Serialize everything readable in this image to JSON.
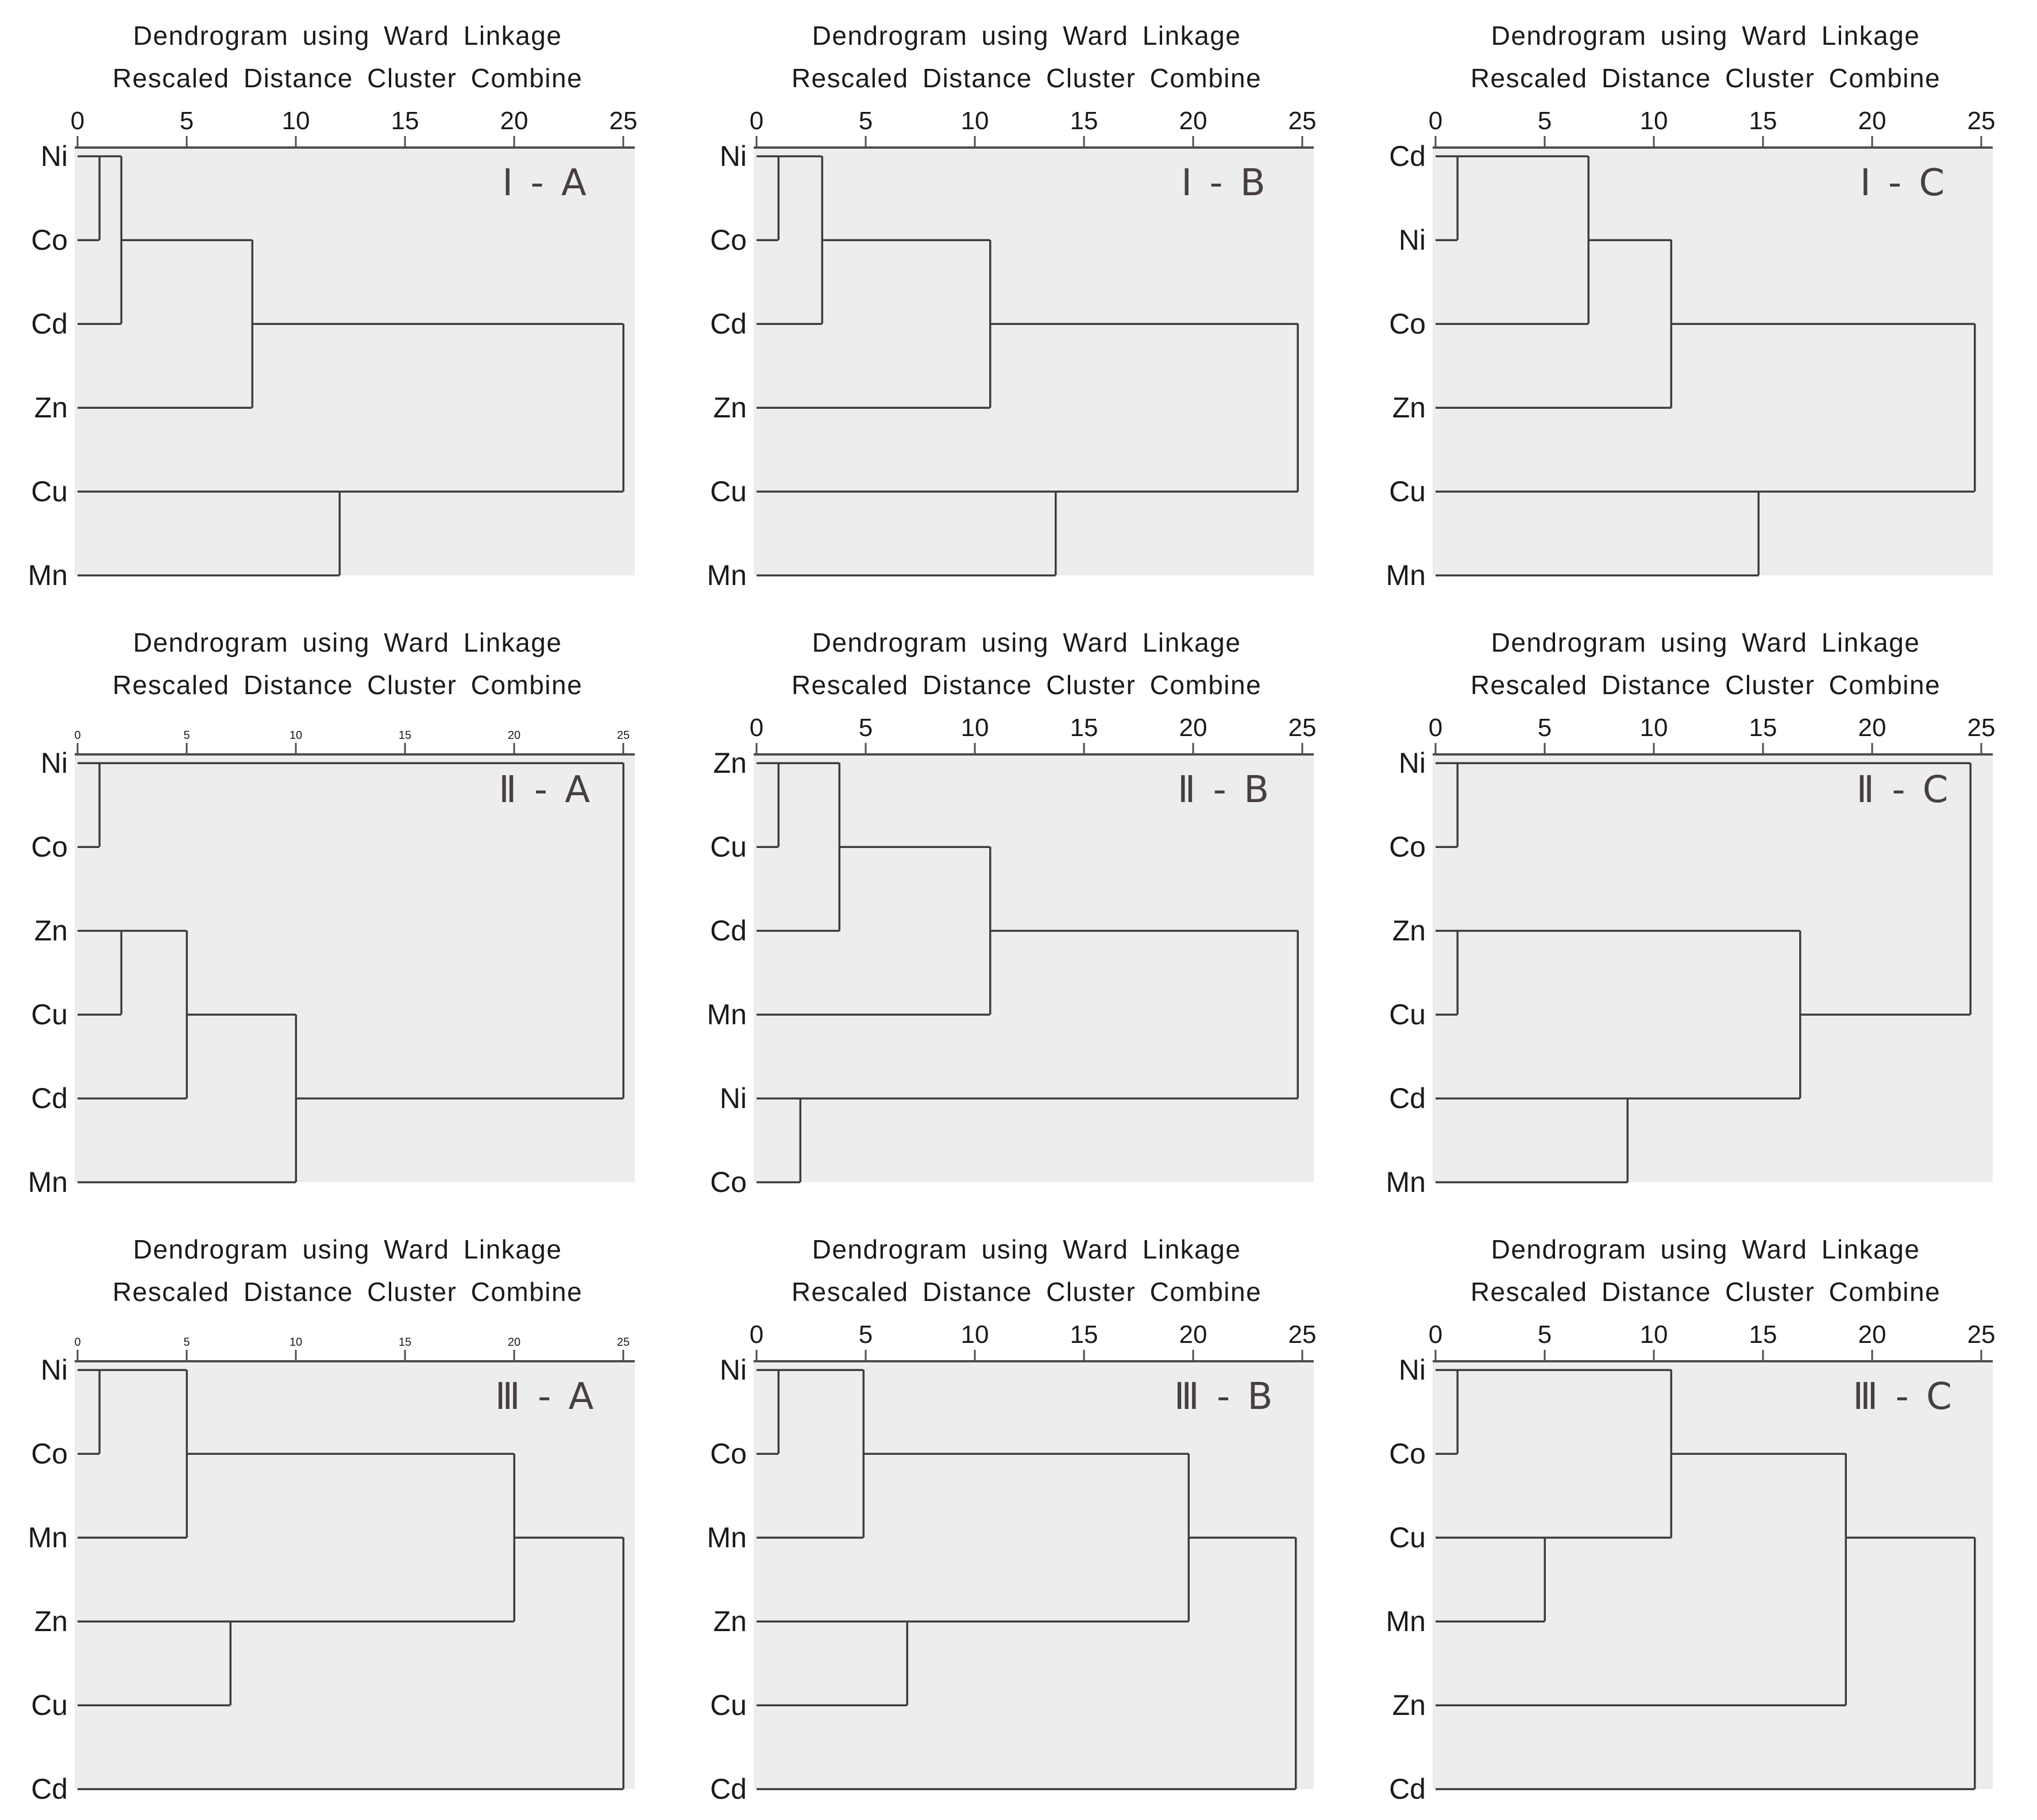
{
  "figure": {
    "title_line1": "Dendrogram using Ward Linkage",
    "title_line2": "Rescaled Distance Cluster Combine",
    "layout": {
      "rows": [
        "I",
        "II",
        "III"
      ],
      "cols": [
        "A",
        "B",
        "C"
      ]
    },
    "colors": {
      "background": "#ffffff",
      "plot_bg": "#ededed",
      "line": "#3d3d3d",
      "axis": "#4d4d4d",
      "text": "#1a1a1a",
      "tag": "#483f3f"
    }
  },
  "chart_data": [
    {
      "id": "I-A",
      "tag": "Ⅰ - A",
      "type": "dendrogram",
      "title": "Dendrogram using Ward Linkage",
      "subtitle": "Rescaled Distance Cluster Combine",
      "xlim": [
        0,
        25
      ],
      "xticks": [
        0,
        5,
        10,
        15,
        20,
        25
      ],
      "small_tick_labels": false,
      "leaves": [
        "Ni",
        "Co",
        "Cd",
        "Zn",
        "Cu",
        "Mn"
      ],
      "merges": [
        {
          "a": "Ni",
          "b": "Co",
          "d": 1
        },
        {
          "a": "Ni,Co",
          "b": "Cd",
          "d": 2
        },
        {
          "a": "Ni,Co,Cd",
          "b": "Zn",
          "d": 8
        },
        {
          "a": "Cu",
          "b": "Mn",
          "d": 12
        },
        {
          "a": "Ni,Co,Cd,Zn",
          "b": "Cu,Mn",
          "d": 25
        }
      ],
      "segments": {
        "h": [
          [
            0,
            0,
            2
          ],
          [
            1,
            0,
            1
          ],
          [
            2,
            0,
            2
          ],
          [
            1,
            2,
            8
          ],
          [
            3,
            0,
            8
          ],
          [
            2,
            8,
            25
          ],
          [
            4,
            0,
            25
          ],
          [
            5,
            0,
            12
          ]
        ],
        "v": [
          [
            1,
            0,
            1
          ],
          [
            2,
            0,
            2
          ],
          [
            8,
            1,
            3
          ],
          [
            12,
            4,
            5
          ],
          [
            25,
            2,
            4
          ]
        ]
      }
    },
    {
      "id": "I-B",
      "tag": "Ⅰ - B",
      "type": "dendrogram",
      "title": "Dendrogram using Ward Linkage",
      "subtitle": "Rescaled Distance Cluster Combine",
      "xlim": [
        0,
        25
      ],
      "xticks": [
        0,
        5,
        10,
        15,
        20,
        25
      ],
      "small_tick_labels": false,
      "leaves": [
        "Ni",
        "Co",
        "Cd",
        "Zn",
        "Cu",
        "Mn"
      ],
      "merges": [
        {
          "a": "Ni",
          "b": "Co",
          "d": 1
        },
        {
          "a": "Ni,Co",
          "b": "Cd",
          "d": 3
        },
        {
          "a": "Ni,Co,Cd",
          "b": "Zn",
          "d": 10.7
        },
        {
          "a": "Cu",
          "b": "Mn",
          "d": 13.7
        },
        {
          "a": "Ni,Co,Cd,Zn",
          "b": "Cu,Mn",
          "d": 24.8
        }
      ],
      "segments": {
        "h": [
          [
            0,
            0,
            3
          ],
          [
            1,
            0,
            1
          ],
          [
            2,
            0,
            3
          ],
          [
            1,
            3,
            10.7
          ],
          [
            3,
            0,
            10.7
          ],
          [
            2,
            10.7,
            24.8
          ],
          [
            4,
            0,
            24.8
          ],
          [
            5,
            0,
            13.7
          ]
        ],
        "v": [
          [
            1,
            0,
            1
          ],
          [
            3,
            0,
            2
          ],
          [
            10.7,
            1,
            3
          ],
          [
            13.7,
            4,
            5
          ],
          [
            24.8,
            2,
            4
          ]
        ]
      }
    },
    {
      "id": "I-C",
      "tag": "Ⅰ - C",
      "type": "dendrogram",
      "title": "Dendrogram using Ward Linkage",
      "subtitle": "Rescaled Distance Cluster Combine",
      "xlim": [
        0,
        25
      ],
      "xticks": [
        0,
        5,
        10,
        15,
        20,
        25
      ],
      "small_tick_labels": false,
      "leaves": [
        "Cd",
        "Ni",
        "Co",
        "Zn",
        "Cu",
        "Mn"
      ],
      "merges": [
        {
          "a": "Cd",
          "b": "Ni",
          "d": 1
        },
        {
          "a": "Cd,Ni",
          "b": "Co",
          "d": 7
        },
        {
          "a": "Cd,Ni,Co",
          "b": "Zn",
          "d": 10.8
        },
        {
          "a": "Cu",
          "b": "Mn",
          "d": 14.8
        },
        {
          "a": "Cd,Ni,Co,Zn",
          "b": "Cu,Mn",
          "d": 24.7
        }
      ],
      "segments": {
        "h": [
          [
            0,
            0,
            7
          ],
          [
            1,
            0,
            1
          ],
          [
            2,
            0,
            7
          ],
          [
            1,
            7,
            10.8
          ],
          [
            3,
            0,
            10.8
          ],
          [
            2,
            10.8,
            24.7
          ],
          [
            4,
            0,
            24.7
          ],
          [
            5,
            0,
            14.8
          ]
        ],
        "v": [
          [
            1,
            0,
            1
          ],
          [
            7,
            0,
            2
          ],
          [
            10.8,
            1,
            3
          ],
          [
            14.8,
            4,
            5
          ],
          [
            24.7,
            2,
            4
          ]
        ]
      }
    },
    {
      "id": "II-A",
      "tag": "Ⅱ - A",
      "type": "dendrogram",
      "title": "Dendrogram using Ward Linkage",
      "subtitle": "Rescaled Distance Cluster Combine",
      "xlim": [
        0,
        25
      ],
      "xticks": [
        0,
        5,
        10,
        15,
        20,
        25
      ],
      "small_tick_labels": true,
      "leaves": [
        "Ni",
        "Co",
        "Zn",
        "Cu",
        "Cd",
        "Mn"
      ],
      "merges": [
        {
          "a": "Ni",
          "b": "Co",
          "d": 1
        },
        {
          "a": "Zn",
          "b": "Cu",
          "d": 2
        },
        {
          "a": "Zn,Cu",
          "b": "Cd",
          "d": 5
        },
        {
          "a": "Zn,Cu,Cd",
          "b": "Mn",
          "d": 10
        },
        {
          "a": "Ni,Co",
          "b": "Zn,Cu,Cd,Mn",
          "d": 25
        }
      ],
      "segments": {
        "h": [
          [
            0,
            0,
            25
          ],
          [
            1,
            0,
            1
          ],
          [
            2,
            0,
            5
          ],
          [
            3,
            0,
            2
          ],
          [
            4,
            0,
            5
          ],
          [
            3,
            5,
            10
          ],
          [
            5,
            0,
            10
          ],
          [
            4,
            10,
            25
          ]
        ],
        "v": [
          [
            1,
            0,
            1
          ],
          [
            2,
            2,
            3
          ],
          [
            5,
            2,
            4
          ],
          [
            10,
            3,
            5
          ],
          [
            25,
            0,
            4
          ]
        ]
      }
    },
    {
      "id": "II-B",
      "tag": "Ⅱ - B",
      "type": "dendrogram",
      "title": "Dendrogram using Ward Linkage",
      "subtitle": "Rescaled Distance Cluster Combine",
      "xlim": [
        0,
        25
      ],
      "xticks": [
        0,
        5,
        10,
        15,
        20,
        25
      ],
      "small_tick_labels": false,
      "leaves": [
        "Zn",
        "Cu",
        "Cd",
        "Mn",
        "Ni",
        "Co"
      ],
      "merges": [
        {
          "a": "Zn",
          "b": "Cu",
          "d": 1
        },
        {
          "a": "Ni",
          "b": "Co",
          "d": 2
        },
        {
          "a": "Zn,Cu",
          "b": "Cd",
          "d": 3.8
        },
        {
          "a": "Zn,Cu,Cd",
          "b": "Mn",
          "d": 10.7
        },
        {
          "a": "Zn,Cu,Cd,Mn",
          "b": "Ni,Co",
          "d": 24.8
        }
      ],
      "segments": {
        "h": [
          [
            0,
            0,
            3.8
          ],
          [
            1,
            0,
            1
          ],
          [
            2,
            0,
            3.8
          ],
          [
            1,
            3.8,
            10.7
          ],
          [
            3,
            0,
            10.7
          ],
          [
            2,
            10.7,
            24.8
          ],
          [
            4,
            0,
            24.8
          ],
          [
            5,
            0,
            2
          ]
        ],
        "v": [
          [
            1,
            0,
            1
          ],
          [
            3.8,
            0,
            2
          ],
          [
            10.7,
            1,
            3
          ],
          [
            2,
            4,
            5
          ],
          [
            24.8,
            2,
            4
          ]
        ]
      }
    },
    {
      "id": "II-C",
      "tag": "Ⅱ - C",
      "type": "dendrogram",
      "title": "Dendrogram using Ward Linkage",
      "subtitle": "Rescaled Distance Cluster Combine",
      "xlim": [
        0,
        25
      ],
      "xticks": [
        0,
        5,
        10,
        15,
        20,
        25
      ],
      "small_tick_labels": false,
      "leaves": [
        "Ni",
        "Co",
        "Zn",
        "Cu",
        "Cd",
        "Mn"
      ],
      "merges": [
        {
          "a": "Ni",
          "b": "Co",
          "d": 1
        },
        {
          "a": "Zn",
          "b": "Cu",
          "d": 1
        },
        {
          "a": "Cd",
          "b": "Mn",
          "d": 8.8
        },
        {
          "a": "Zn,Cu",
          "b": "Cd,Mn",
          "d": 16.7
        },
        {
          "a": "Ni,Co",
          "b": "Zn,Cu,Cd,Mn",
          "d": 24.5
        }
      ],
      "segments": {
        "h": [
          [
            0,
            0,
            24.5
          ],
          [
            1,
            0,
            1
          ],
          [
            2,
            0,
            16.7
          ],
          [
            3,
            0,
            1
          ],
          [
            4,
            0,
            8.8
          ],
          [
            5,
            0,
            8.8
          ],
          [
            4,
            8.8,
            16.7
          ],
          [
            3,
            16.7,
            24.5
          ]
        ],
        "v": [
          [
            1,
            0,
            1
          ],
          [
            1,
            2,
            3
          ],
          [
            8.8,
            4,
            5
          ],
          [
            16.7,
            2,
            4
          ],
          [
            24.5,
            0,
            3
          ]
        ]
      }
    },
    {
      "id": "III-A",
      "tag": "Ⅲ - A",
      "type": "dendrogram",
      "title": "Dendrogram using Ward Linkage",
      "subtitle": "Rescaled Distance Cluster Combine",
      "xlim": [
        0,
        25
      ],
      "xticks": [
        0,
        5,
        10,
        15,
        20,
        25
      ],
      "small_tick_labels": true,
      "leaves": [
        "Ni",
        "Co",
        "Mn",
        "Zn",
        "Cu",
        "Cd"
      ],
      "merges": [
        {
          "a": "Ni",
          "b": "Co",
          "d": 1
        },
        {
          "a": "Ni,Co",
          "b": "Mn",
          "d": 5
        },
        {
          "a": "Zn",
          "b": "Cu",
          "d": 7
        },
        {
          "a": "Ni,Co,Mn",
          "b": "Zn,Cu",
          "d": 20
        },
        {
          "a": "Ni,Co,Mn,Zn,Cu",
          "b": "Cd",
          "d": 25
        }
      ],
      "segments": {
        "h": [
          [
            0,
            0,
            5
          ],
          [
            1,
            0,
            1
          ],
          [
            2,
            0,
            5
          ],
          [
            1,
            5,
            20
          ],
          [
            3,
            0,
            20
          ],
          [
            4,
            0,
            7
          ],
          [
            2,
            20,
            25
          ],
          [
            5,
            0,
            25
          ]
        ],
        "v": [
          [
            1,
            0,
            1
          ],
          [
            5,
            0,
            2
          ],
          [
            7,
            3,
            4
          ],
          [
            20,
            1,
            3
          ],
          [
            25,
            2,
            5
          ]
        ]
      }
    },
    {
      "id": "III-B",
      "tag": "Ⅲ - B",
      "type": "dendrogram",
      "title": "Dendrogram using Ward Linkage",
      "subtitle": "Rescaled Distance Cluster Combine",
      "xlim": [
        0,
        25
      ],
      "xticks": [
        0,
        5,
        10,
        15,
        20,
        25
      ],
      "small_tick_labels": false,
      "leaves": [
        "Ni",
        "Co",
        "Mn",
        "Zn",
        "Cu",
        "Cd"
      ],
      "merges": [
        {
          "a": "Ni",
          "b": "Co",
          "d": 1
        },
        {
          "a": "Ni,Co",
          "b": "Mn",
          "d": 4.9
        },
        {
          "a": "Zn",
          "b": "Cu",
          "d": 6.9
        },
        {
          "a": "Ni,Co,Mn",
          "b": "Zn,Cu",
          "d": 19.8
        },
        {
          "a": "Ni,Co,Mn,Zn,Cu",
          "b": "Cd",
          "d": 24.7
        }
      ],
      "segments": {
        "h": [
          [
            0,
            0,
            4.9
          ],
          [
            1,
            0,
            1
          ],
          [
            2,
            0,
            4.9
          ],
          [
            1,
            4.9,
            19.8
          ],
          [
            3,
            0,
            19.8
          ],
          [
            4,
            0,
            6.9
          ],
          [
            2,
            19.8,
            24.7
          ],
          [
            5,
            0,
            24.7
          ]
        ],
        "v": [
          [
            1,
            0,
            1
          ],
          [
            4.9,
            0,
            2
          ],
          [
            6.9,
            3,
            4
          ],
          [
            19.8,
            1,
            3
          ],
          [
            24.7,
            2,
            5
          ]
        ]
      }
    },
    {
      "id": "III-C",
      "tag": "Ⅲ - C",
      "type": "dendrogram",
      "title": "Dendrogram using Ward Linkage",
      "subtitle": "Rescaled Distance Cluster Combine",
      "xlim": [
        0,
        25
      ],
      "xticks": [
        0,
        5,
        10,
        15,
        20,
        25
      ],
      "small_tick_labels": false,
      "leaves": [
        "Ni",
        "Co",
        "Cu",
        "Mn",
        "Zn",
        "Cd"
      ],
      "merges": [
        {
          "a": "Ni",
          "b": "Co",
          "d": 1
        },
        {
          "a": "Cu",
          "b": "Mn",
          "d": 5
        },
        {
          "a": "Ni,Co",
          "b": "Cu,Mn",
          "d": 10.8
        },
        {
          "a": "Ni,Co,Cu,Mn",
          "b": "Zn",
          "d": 18.8
        },
        {
          "a": "Ni,Co,Cu,Mn,Zn",
          "b": "Cd",
          "d": 24.7
        }
      ],
      "segments": {
        "h": [
          [
            0,
            0,
            10.8
          ],
          [
            1,
            0,
            1
          ],
          [
            2,
            0,
            10.8
          ],
          [
            3,
            0,
            5
          ],
          [
            1,
            10.8,
            18.8
          ],
          [
            4,
            0,
            18.8
          ],
          [
            2,
            18.8,
            24.7
          ],
          [
            5,
            0,
            24.7
          ]
        ],
        "v": [
          [
            1,
            0,
            1
          ],
          [
            5,
            2,
            3
          ],
          [
            10.8,
            0,
            2
          ],
          [
            18.8,
            1,
            4
          ],
          [
            24.7,
            2,
            5
          ]
        ]
      }
    }
  ]
}
